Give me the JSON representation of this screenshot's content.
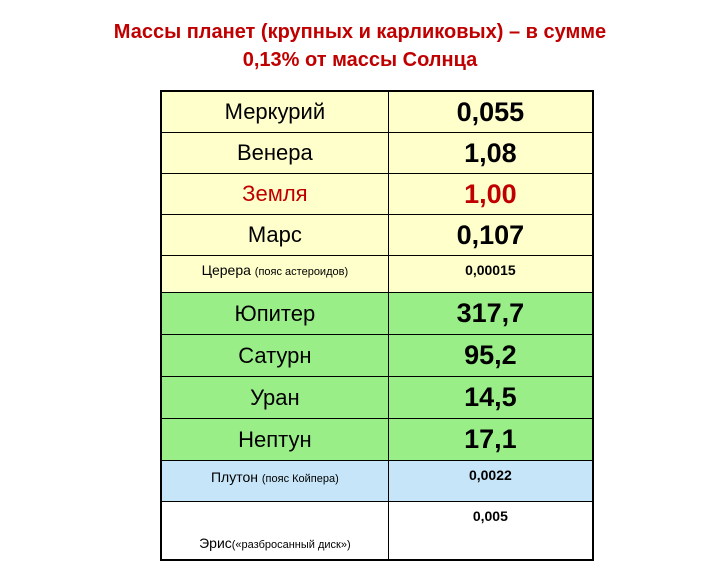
{
  "title": {
    "line1": "Массы планет (крупных и карликовых) – в сумме",
    "line2": "0,13% от массы Солнца"
  },
  "colors": {
    "title": "#C00000",
    "terrestrial_bg": "#FFFFCC",
    "giant_bg": "#99EE88",
    "pluto_bg": "#C6E5F8",
    "eris_bg": "#FFFFFF",
    "highlight_text": "#C00000"
  },
  "table": {
    "terrestrial": [
      {
        "name": "Меркурий",
        "value": "0,055"
      },
      {
        "name": "Венера",
        "value": "1,08"
      },
      {
        "name": "Земля",
        "value": "1,00"
      },
      {
        "name": "Марс",
        "value": "0,107"
      }
    ],
    "ceres": {
      "name": "Церера",
      "note": "(пояс астероидов)",
      "value": "0,00015"
    },
    "giants": [
      {
        "name": "Юпитер",
        "value": "317,7"
      },
      {
        "name": "Сатурн",
        "value": "95,2"
      },
      {
        "name": "Уран",
        "value": "14,5"
      },
      {
        "name": "Нептун",
        "value": "17,1"
      }
    ],
    "pluto": {
      "name": "Плутон",
      "note": "(пояс Койпера)",
      "value": "0,0022"
    },
    "eris": {
      "name": "Эрис",
      "note": "(«разбросанный диск»)",
      "value": "0,005"
    }
  }
}
